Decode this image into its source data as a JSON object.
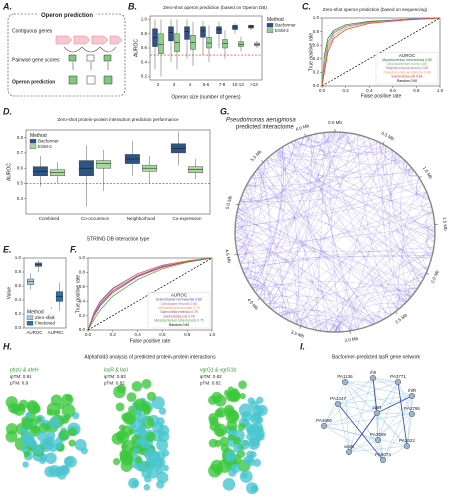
{
  "panel_labels": [
    "A.",
    "B.",
    "C.",
    "D.",
    "E.",
    "F.",
    "G.",
    "H.",
    "I."
  ],
  "operon_diagram": {
    "title": "Operon prediction",
    "rows": [
      "Contiguous genes",
      "Pairwise gene scores",
      "Operon prediction"
    ]
  },
  "chart_data": [
    {
      "type": "box",
      "title": "Zero-shot operon prediction (based on Operon DB)",
      "xlabel": "Operon size (number of genes)",
      "ylabel": "AUROC",
      "categories": [
        "2",
        "3",
        "4",
        "5-6",
        "7-9",
        "10-13",
        ">13"
      ],
      "ylim": [
        0.15,
        1.05
      ],
      "yticks": [
        0.2,
        0.4,
        0.6,
        0.8,
        {
          "value": 1,
          "label": "1.0"
        }
      ],
      "ref_line": 0.5,
      "legend_title": "Method",
      "legend": "right",
      "series": [
        {
          "name": "Bacformer",
          "color": "#2f4f8f",
          "values": [
            [
              0.3,
              0.62,
              0.75,
              0.87,
              1.0
            ],
            [
              0.4,
              0.7,
              0.82,
              0.9,
              1.0
            ],
            [
              0.45,
              0.72,
              0.83,
              0.9,
              1.0
            ],
            [
              0.5,
              0.75,
              0.84,
              0.9,
              0.98
            ],
            [
              0.6,
              0.8,
              0.86,
              0.9,
              0.97
            ],
            [
              0.8,
              0.86,
              0.89,
              0.92,
              0.95
            ],
            [
              0.85,
              0.88,
              0.9,
              0.92,
              0.93
            ]
          ]
        },
        {
          "name": "ESM-2",
          "color": "#8fd18a",
          "values": [
            [
              0.2,
              0.52,
              0.65,
              0.8,
              1.0
            ],
            [
              0.3,
              0.55,
              0.68,
              0.8,
              1.0
            ],
            [
              0.35,
              0.58,
              0.68,
              0.78,
              0.97
            ],
            [
              0.4,
              0.6,
              0.67,
              0.75,
              0.92
            ],
            [
              0.45,
              0.6,
              0.66,
              0.72,
              0.85
            ],
            [
              0.55,
              0.62,
              0.65,
              0.69,
              0.76
            ],
            [
              0.6,
              0.63,
              0.65,
              0.67,
              0.7
            ]
          ]
        }
      ]
    },
    {
      "type": "line",
      "title": "Zero-shot operon prediction (based on sequencing)",
      "xlabel": "False positive rate",
      "ylabel": "True positive rate",
      "xlim": [
        0,
        1
      ],
      "ylim": [
        0,
        1
      ],
      "xticks": [
        {
          "value": 0,
          "label": "0.0"
        },
        0.2,
        0.4,
        0.6,
        0.8,
        {
          "value": 1,
          "label": "1.0"
        }
      ],
      "yticks": [
        {
          "value": 0,
          "label": "0.0"
        },
        0.2,
        0.4,
        0.6,
        0.8,
        {
          "value": 1,
          "label": "1.0"
        }
      ],
      "legend_title": "AUROC",
      "legend": "lower right",
      "series": [
        {
          "name": "Mycobacterium tuberculosis 0.89",
          "color": "#1f7a3a",
          "x": [
            0,
            0.02,
            0.05,
            0.1,
            0.2,
            0.4,
            0.7,
            1
          ],
          "values": [
            0,
            0.45,
            0.7,
            0.82,
            0.9,
            0.95,
            0.98,
            1
          ]
        },
        {
          "name": "Mycobacterium bovis 0.88",
          "color": "#6cc04a",
          "x": [
            0,
            0.02,
            0.05,
            0.1,
            0.2,
            0.4,
            0.7,
            1
          ],
          "values": [
            0,
            0.4,
            0.65,
            0.8,
            0.88,
            0.94,
            0.98,
            1
          ]
        },
        {
          "name": "Staphylococcus aureus 0.88",
          "color": "#b05fc7",
          "x": [
            0,
            0.02,
            0.05,
            0.1,
            0.2,
            0.4,
            0.7,
            1
          ],
          "values": [
            0,
            0.3,
            0.6,
            0.78,
            0.88,
            0.94,
            0.98,
            1
          ]
        },
        {
          "name": "Pseudomonas aeruginosa 0.86",
          "color": "#f0a030",
          "x": [
            0,
            0.02,
            0.05,
            0.1,
            0.2,
            0.4,
            0.7,
            1
          ],
          "values": [
            0,
            0.25,
            0.55,
            0.74,
            0.86,
            0.93,
            0.97,
            1
          ]
        },
        {
          "name": "Escherichia coli 0.84",
          "color": "#e03030",
          "x": [
            0,
            0.02,
            0.05,
            0.1,
            0.2,
            0.4,
            0.7,
            1
          ],
          "values": [
            0,
            0.2,
            0.5,
            0.7,
            0.83,
            0.92,
            0.97,
            1
          ]
        },
        {
          "name": "Random 0.50",
          "color": "#000000",
          "dash": true,
          "x": [
            0,
            1
          ],
          "values": [
            0,
            1
          ]
        }
      ]
    },
    {
      "type": "box",
      "title": "Zero-shot protein-protein interaction prediction performance",
      "xlabel": "STRING DB interaction type",
      "ylabel": "AUROC",
      "categories": [
        "Combined",
        "Co-occurence",
        "Neighborhood",
        "Co-expression"
      ],
      "ylim": [
        0.3,
        0.85
      ],
      "yticks": [
        0.4,
        0.5,
        0.6,
        0.7,
        0.8
      ],
      "ref_line": 0.5,
      "legend_title": "Method",
      "legend": "upper left",
      "series": [
        {
          "name": "Bacformer",
          "color": "#2c5585",
          "values": [
            [
              0.48,
              0.55,
              0.58,
              0.61,
              0.68
            ],
            [
              0.35,
              0.55,
              0.6,
              0.65,
              0.75
            ],
            [
              0.55,
              0.63,
              0.66,
              0.69,
              0.78
            ],
            [
              0.62,
              0.7,
              0.73,
              0.76,
              0.84
            ]
          ]
        },
        {
          "name": "ESM-2",
          "color": "#a8d8a0",
          "values": [
            [
              0.5,
              0.55,
              0.57,
              0.59,
              0.64
            ],
            [
              0.45,
              0.6,
              0.63,
              0.65,
              0.72
            ],
            [
              0.5,
              0.58,
              0.6,
              0.62,
              0.68
            ],
            [
              0.53,
              0.57,
              0.59,
              0.61,
              0.66
            ]
          ]
        }
      ]
    },
    {
      "type": "box",
      "ylabel": "Value",
      "categories": [
        "AUROC",
        "AUPRC"
      ],
      "ylim": [
        0,
        1
      ],
      "yticks": [
        {
          "value": 0,
          "label": "0.0"
        },
        0.2,
        0.4,
        0.6,
        0.8,
        {
          "value": 1,
          "label": "1.0"
        }
      ],
      "legend_title": "Method",
      "legend": "lower left",
      "series": [
        {
          "name": "Zero-shot",
          "color": "#a6c8e8",
          "values": [
            [
              0.55,
              0.62,
              0.66,
              0.7,
              0.78
            ],
            [
              0.05,
              0.12,
              0.15,
              0.2,
              0.3
            ]
          ]
        },
        {
          "name": "Finetuned",
          "color": "#2f6fa8",
          "values": [
            [
              0.8,
              0.88,
              0.91,
              0.93,
              0.97
            ],
            [
              0.25,
              0.38,
              0.45,
              0.52,
              0.65
            ]
          ]
        }
      ]
    },
    {
      "type": "line",
      "xlabel": "False positive rate",
      "ylabel": "True positive rate",
      "xlim": [
        0,
        1
      ],
      "ylim": [
        0,
        1
      ],
      "xticks": [
        {
          "value": 0,
          "label": "0.0"
        },
        0.2,
        0.4,
        0.6,
        0.8,
        {
          "value": 1,
          "label": "1.0"
        }
      ],
      "yticks": [
        {
          "value": 0,
          "label": "0.0"
        },
        0.2,
        0.4,
        0.6,
        0.8,
        {
          "value": 1,
          "label": "1.0"
        }
      ],
      "legend_title": "AUROC",
      "legend": "lower right",
      "series": [
        {
          "name": "Enterobacter hormaechei 0.80",
          "color": "#3050c0",
          "x": [
            0,
            0.05,
            0.1,
            0.2,
            0.4,
            0.6,
            0.8,
            1
          ],
          "values": [
            0,
            0.25,
            0.4,
            0.58,
            0.78,
            0.9,
            0.96,
            1
          ]
        },
        {
          "name": "Citrobacter freundii 0.80",
          "color": "#d060a0",
          "x": [
            0,
            0.05,
            0.1,
            0.2,
            0.4,
            0.6,
            0.8,
            1
          ],
          "values": [
            0,
            0.24,
            0.39,
            0.57,
            0.78,
            0.9,
            0.96,
            1
          ]
        },
        {
          "name": "Klebsiella pneumoniae 0.79",
          "color": "#f0a030",
          "x": [
            0,
            0.05,
            0.1,
            0.2,
            0.4,
            0.6,
            0.8,
            1
          ],
          "values": [
            0,
            0.23,
            0.37,
            0.55,
            0.76,
            0.89,
            0.96,
            1
          ]
        },
        {
          "name": "Salmonella enterica 0.79",
          "color": "#8050c0",
          "x": [
            0,
            0.05,
            0.1,
            0.2,
            0.4,
            0.6,
            0.8,
            1
          ],
          "values": [
            0,
            0.22,
            0.36,
            0.54,
            0.75,
            0.88,
            0.95,
            1
          ]
        },
        {
          "name": "Escherichia coli 0.78",
          "color": "#e03030",
          "x": [
            0,
            0.05,
            0.1,
            0.2,
            0.4,
            0.6,
            0.8,
            1
          ],
          "values": [
            0,
            0.2,
            0.34,
            0.52,
            0.74,
            0.87,
            0.95,
            1
          ]
        },
        {
          "name": "Mycobacterium tuberculosis 0.75",
          "color": "#3aa040",
          "x": [
            0,
            0.05,
            0.1,
            0.2,
            0.4,
            0.6,
            0.8,
            1
          ],
          "values": [
            0,
            0.15,
            0.28,
            0.47,
            0.7,
            0.85,
            0.94,
            1
          ]
        },
        {
          "name": "Random 0.50",
          "color": "#000000",
          "dash": true,
          "x": [
            0,
            1
          ],
          "values": [
            0,
            1
          ]
        }
      ]
    },
    {
      "type": "chord",
      "title": "Pseudomonas aeruginosa",
      "subtitle": "predicted interactome",
      "xlim": [
        0,
        6.3
      ],
      "xticks": [
        {
          "value": 0,
          "label": "0.0 Mb"
        },
        {
          "value": 0.5,
          "label": "0.5 Mb"
        },
        {
          "value": 1,
          "label": "1.0 Mb"
        },
        {
          "value": 1.5,
          "label": "1.5 Mb"
        },
        {
          "value": 2,
          "label": "2.0 Mb"
        },
        {
          "value": 2.5,
          "label": "2.5 Mb"
        },
        {
          "value": 3,
          "label": "3.0 Mb"
        },
        {
          "value": 3.5,
          "label": "3.5 Mb"
        },
        {
          "value": 4,
          "label": "4.0 Mb"
        },
        {
          "value": 4.5,
          "label": "4.5 Mb"
        },
        {
          "value": 5,
          "label": "5.0 Mb"
        },
        {
          "value": 5.5,
          "label": "5.5 Mb"
        },
        {
          "value": 6,
          "label": "6.0 Mb"
        }
      ]
    }
  ],
  "structures": {
    "title": "Alphafold3 analysis of predicted protein-protein interactions",
    "items": [
      {
        "pair": "phzU & ahrH",
        "scores": [
          "ipTM: 0.91",
          "pTM: 0.9"
        ]
      },
      {
        "pair": "lasR & lasI",
        "scores": [
          "ipTM: 0.83",
          "pTM: 0.82"
        ]
      },
      {
        "pair": "vgrG1 & vgrG1b",
        "scores": [
          "ipTM: 0.82",
          "pTM: 0.82"
        ]
      }
    ]
  },
  "network": {
    "title": "Bacformer-predicted lasR gene network",
    "nodes": [
      "rhlI",
      "PA1136",
      "PA3771",
      "rhlR",
      "PA1347",
      "PA2786",
      "lasR",
      "PA4806",
      "PA3509",
      "PA2622",
      "vqsR",
      "PA5074"
    ]
  }
}
